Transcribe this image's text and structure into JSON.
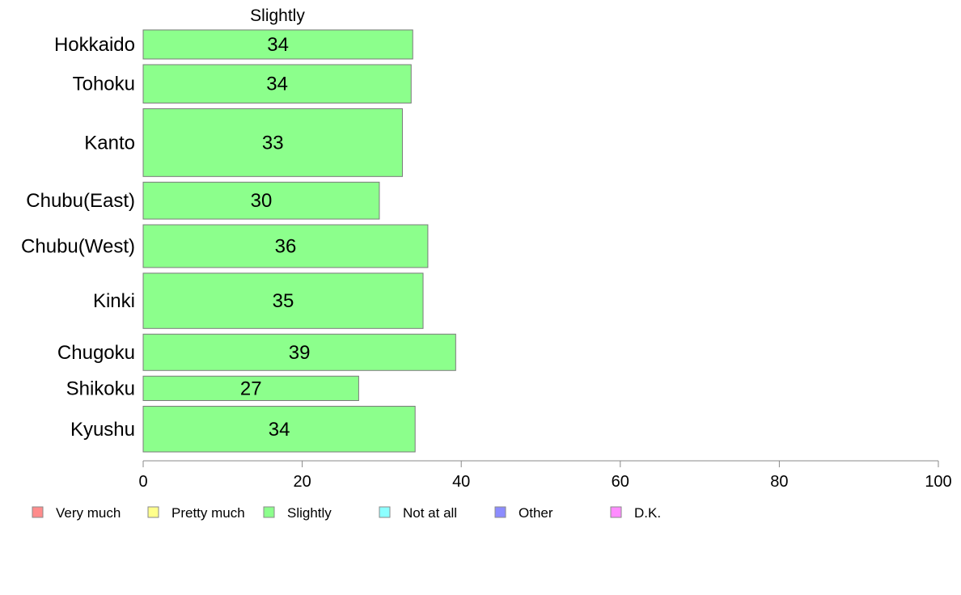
{
  "chart_data": {
    "type": "bar",
    "orientation": "horizontal",
    "header_label": "Slightly",
    "categories": [
      "Hokkaido",
      "Tohoku",
      "Kanto",
      "Chubu(East)",
      "Chubu(West)",
      "Kinki",
      "Chugoku",
      "Shikoku",
      "Kyushu"
    ],
    "series": [
      {
        "name": "Slightly",
        "color": "#8cff8c",
        "values": [
          33.9,
          33.7,
          32.6,
          29.7,
          35.8,
          35.2,
          39.3,
          27.1,
          34.2
        ],
        "labels": [
          "34",
          "34",
          "33",
          "30",
          "36",
          "35",
          "39",
          "27",
          "34"
        ]
      }
    ],
    "row_weights": [
      1.0,
      1.32,
      2.33,
      1.27,
      1.47,
      1.9,
      1.25,
      0.84,
      1.57
    ],
    "xlim": [
      0,
      100
    ],
    "xticks": [
      "0",
      "20",
      "40",
      "60",
      "80",
      "100"
    ],
    "legend": {
      "placement": "bottom",
      "items": [
        {
          "label": "Very much",
          "color": "#ff8c8c"
        },
        {
          "label": "Pretty much",
          "color": "#ffff8c"
        },
        {
          "label": "Slightly",
          "color": "#8cff8c"
        },
        {
          "label": "Not at all",
          "color": "#8cffff"
        },
        {
          "label": "Other",
          "color": "#8c8cff"
        },
        {
          "label": "D.K.",
          "color": "#ff8cff"
        }
      ]
    }
  }
}
